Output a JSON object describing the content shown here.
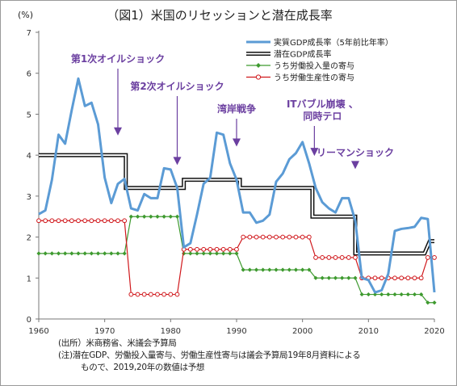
{
  "chart_data": {
    "type": "line",
    "title": "（図1）米国のリセッションと潜在成長率",
    "ylabel": "(%)",
    "xlim": [
      1960,
      2020
    ],
    "ylim": [
      0,
      7
    ],
    "x_ticks": [
      1960,
      1970,
      1980,
      1990,
      2000,
      2010,
      2020
    ],
    "y_ticks": [
      0,
      1,
      2,
      3,
      4,
      5,
      6,
      7
    ],
    "grid": false,
    "legend_position": "top-right",
    "colors": {
      "actual": "#5b9bd5",
      "potential_outer": "#111111",
      "potential_inner": "#ffffff",
      "labor_input": "#3e9a2f",
      "labor_productivity": "#d0181c",
      "annotation": "#6b3fa0"
    },
    "series": [
      {
        "name": "実質GDP成長率（5年前比年率）",
        "style": "line",
        "x": [
          1960,
          1961,
          1962,
          1963,
          1964,
          1965,
          1966,
          1967,
          1968,
          1969,
          1970,
          1971,
          1972,
          1973,
          1974,
          1975,
          1976,
          1977,
          1978,
          1979,
          1980,
          1981,
          1982,
          1983,
          1984,
          1985,
          1986,
          1987,
          1988,
          1989,
          1990,
          1991,
          1992,
          1993,
          1994,
          1995,
          1996,
          1997,
          1998,
          1999,
          2000,
          2001,
          2002,
          2003,
          2004,
          2005,
          2006,
          2007,
          2008,
          2009,
          2010,
          2011,
          2012,
          2013,
          2014,
          2015,
          2016,
          2017,
          2018,
          2019,
          2020
        ],
        "values": [
          2.56,
          2.65,
          3.4,
          4.5,
          4.28,
          5.1,
          5.87,
          5.2,
          5.28,
          4.75,
          3.45,
          2.83,
          3.3,
          3.42,
          2.7,
          2.65,
          3.05,
          2.95,
          2.95,
          3.68,
          3.65,
          3.2,
          1.75,
          1.85,
          2.55,
          3.3,
          3.45,
          4.55,
          4.5,
          3.8,
          3.4,
          2.6,
          2.6,
          2.35,
          2.4,
          2.55,
          3.35,
          3.55,
          3.9,
          4.05,
          4.32,
          3.8,
          3.2,
          2.85,
          2.7,
          2.6,
          2.95,
          2.95,
          2.4,
          1.0,
          0.95,
          0.65,
          0.7,
          1.1,
          2.15,
          2.2,
          2.22,
          2.25,
          2.47,
          2.44,
          0.65
        ]
      },
      {
        "name": "潜在GDP成長率",
        "style": "double",
        "x": [
          1960,
          1973.2,
          1973.2,
          1982,
          1982,
          1990.5,
          1990.5,
          2001.5,
          2001.5,
          2008,
          2008,
          2018.5,
          2019.3,
          2020
        ],
        "values": [
          4.0,
          4.0,
          3.2,
          3.2,
          3.4,
          3.4,
          3.2,
          3.2,
          2.5,
          2.5,
          1.6,
          1.6,
          1.9,
          1.9
        ]
      },
      {
        "name": "うち労働投入量の寄与",
        "style": "diamond",
        "x": [
          1960,
          1961,
          1962,
          1963,
          1964,
          1965,
          1966,
          1967,
          1968,
          1969,
          1970,
          1971,
          1972,
          1973,
          1974,
          1975,
          1976,
          1977,
          1978,
          1979,
          1980,
          1981,
          1982,
          1983,
          1984,
          1985,
          1986,
          1987,
          1988,
          1989,
          1990,
          1991,
          1992,
          1993,
          1994,
          1995,
          1996,
          1997,
          1998,
          1999,
          2000,
          2001,
          2002,
          2003,
          2004,
          2005,
          2006,
          2007,
          2008,
          2009,
          2010,
          2011,
          2012,
          2013,
          2014,
          2015,
          2016,
          2017,
          2018,
          2019,
          2020
        ],
        "values": [
          1.6,
          1.6,
          1.6,
          1.6,
          1.6,
          1.6,
          1.6,
          1.6,
          1.6,
          1.6,
          1.6,
          1.6,
          1.6,
          1.6,
          2.5,
          2.5,
          2.5,
          2.5,
          2.5,
          2.5,
          2.5,
          2.5,
          1.6,
          1.6,
          1.6,
          1.6,
          1.6,
          1.6,
          1.6,
          1.6,
          1.6,
          1.2,
          1.2,
          1.2,
          1.2,
          1.2,
          1.2,
          1.2,
          1.2,
          1.2,
          1.2,
          1.2,
          1.0,
          1.0,
          1.0,
          1.0,
          1.0,
          1.0,
          1.0,
          0.6,
          0.6,
          0.6,
          0.6,
          0.6,
          0.6,
          0.6,
          0.6,
          0.6,
          0.6,
          0.4,
          0.4
        ]
      },
      {
        "name": "うち労働生産性の寄与",
        "style": "circle",
        "x": [
          1960,
          1961,
          1962,
          1963,
          1964,
          1965,
          1966,
          1967,
          1968,
          1969,
          1970,
          1971,
          1972,
          1973,
          1974,
          1975,
          1976,
          1977,
          1978,
          1979,
          1980,
          1981,
          1982,
          1983,
          1984,
          1985,
          1986,
          1987,
          1988,
          1989,
          1990,
          1991,
          1992,
          1993,
          1994,
          1995,
          1996,
          1997,
          1998,
          1999,
          2000,
          2001,
          2002,
          2003,
          2004,
          2005,
          2006,
          2007,
          2008,
          2009,
          2010,
          2011,
          2012,
          2013,
          2014,
          2015,
          2016,
          2017,
          2018,
          2019,
          2020
        ],
        "values": [
          2.4,
          2.4,
          2.4,
          2.4,
          2.4,
          2.4,
          2.4,
          2.4,
          2.4,
          2.4,
          2.4,
          2.4,
          2.4,
          2.4,
          0.6,
          0.6,
          0.6,
          0.6,
          0.6,
          0.6,
          0.6,
          0.6,
          1.7,
          1.7,
          1.7,
          1.7,
          1.7,
          1.7,
          1.7,
          1.7,
          1.7,
          2.0,
          2.0,
          2.0,
          2.0,
          2.0,
          2.0,
          2.0,
          2.0,
          2.0,
          2.0,
          2.0,
          1.5,
          1.5,
          1.5,
          1.5,
          1.5,
          1.5,
          1.5,
          1.0,
          1.0,
          1.0,
          1.0,
          1.0,
          1.0,
          1.0,
          1.0,
          1.0,
          1.0,
          1.5,
          1.5
        ]
      }
    ],
    "annotations": [
      {
        "lines": [
          "第1次オイルショック"
        ],
        "x": 1972,
        "y_tip": 4.48
      },
      {
        "lines": [
          "第2次オイルショック"
        ],
        "x": 1981,
        "y_tip": 3.76
      },
      {
        "lines": [
          "湾岸戦争"
        ],
        "x": 1990,
        "y_tip": 4.21
      },
      {
        "lines": [
          "ITバブル崩壊 、",
          "同時テロ"
        ],
        "x": 2001.8,
        "y_tip": 3.98
      },
      {
        "lines": [
          "リーマンショック"
        ],
        "x": 2008,
        "y_tip": 3.66
      }
    ]
  },
  "notes": {
    "source": "(出所）米商務省、米議会予算局",
    "note_line1": "(注)潜在GDP、労働投入量寄与、労働生産性寄与は議会予算局19年8月資料による",
    "note_line2": "もので、2019,20年の数値は予想"
  }
}
